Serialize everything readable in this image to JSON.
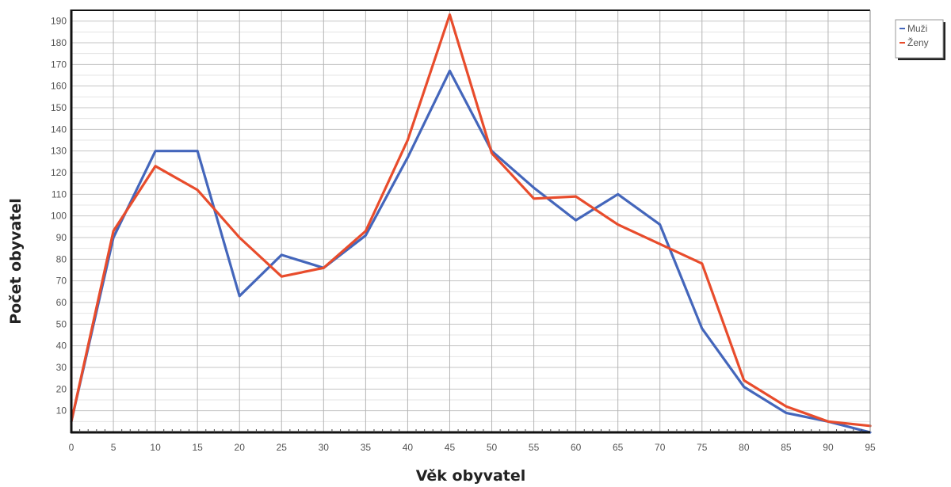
{
  "chart_data": {
    "type": "line",
    "xlabel": "Věk obyvatel",
    "ylabel": "Počet obyvatel",
    "x": [
      0,
      5,
      10,
      15,
      20,
      25,
      30,
      35,
      40,
      45,
      50,
      55,
      60,
      65,
      70,
      75,
      80,
      85,
      90,
      95
    ],
    "xlim": [
      0,
      95
    ],
    "ylim": [
      0,
      195
    ],
    "yticks": [
      10,
      20,
      30,
      40,
      50,
      60,
      70,
      80,
      90,
      100,
      110,
      120,
      130,
      140,
      150,
      160,
      170,
      180,
      190
    ],
    "grid": true,
    "legend_position": "top-right",
    "series": [
      {
        "name": "Muži",
        "color": "#4466bb",
        "values": [
          5,
          90,
          130,
          130,
          63,
          82,
          76,
          91,
          127,
          167,
          130,
          113,
          98,
          110,
          96,
          48,
          21,
          9,
          5,
          0
        ]
      },
      {
        "name": "Ženy",
        "color": "#e84c2c",
        "values": [
          5,
          93,
          123,
          112,
          90,
          72,
          76,
          93,
          135,
          193,
          129,
          108,
          109,
          96,
          87,
          78,
          24,
          12,
          5,
          3
        ]
      }
    ]
  }
}
